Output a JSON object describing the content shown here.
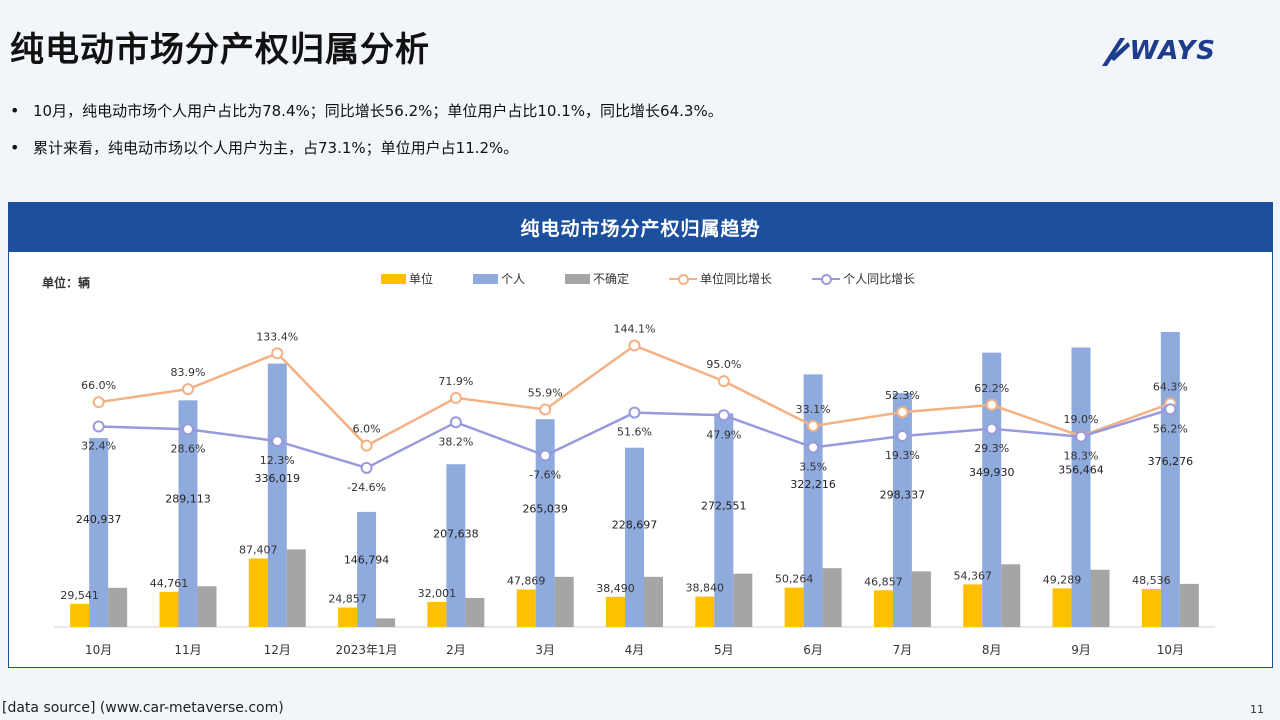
{
  "page": {
    "title": "纯电动市场分产权归属分析",
    "logo_text": "WAYS",
    "bullets": [
      "10月，纯电动市场个人用户占比为78.4%；同比增长56.2%；单位用户占比10.1%，同比增长64.3%。",
      "累计来看，纯电动市场以个人用户为主，占73.1%；单位用户占11.2%。"
    ],
    "bullet_symbol": "•",
    "footer_source": "[data source] (www.car-metaverse.com)",
    "page_number": "11"
  },
  "colors": {
    "brand_blue": "#1d4f9f",
    "unit_bar": "#ffc000",
    "personal_bar": "#8faadc",
    "uncertain_bar": "#a5a5a5",
    "unit_growth_line": "#f4b183",
    "personal_growth_line": "#9999dd"
  },
  "chart_data": {
    "type": "bar",
    "title": "纯电动市场分产权归属趋势",
    "unit_label": "单位：辆",
    "categories": [
      "10月",
      "11月",
      "12月",
      "2023年1月",
      "2月",
      "3月",
      "4月",
      "5月",
      "6月",
      "7月",
      "8月",
      "9月",
      "10月"
    ],
    "series": [
      {
        "name": "单位",
        "type": "bar",
        "values": [
          29541,
          44761,
          87407,
          24857,
          32001,
          47869,
          38490,
          38840,
          50264,
          46857,
          54367,
          49289,
          48536
        ]
      },
      {
        "name": "个人",
        "type": "bar",
        "values": [
          240937,
          289113,
          336019,
          146794,
          207638,
          265039,
          228697,
          272551,
          322216,
          298337,
          349930,
          356464,
          376276
        ]
      },
      {
        "name": "不确定",
        "type": "bar",
        "values": [
          50000,
          52000,
          99000,
          11000,
          37000,
          64000,
          64000,
          68000,
          75000,
          71000,
          80000,
          73000,
          55000
        ]
      },
      {
        "name": "单位同比增长",
        "type": "line",
        "values": [
          66.0,
          83.9,
          133.4,
          6.0,
          71.9,
          55.9,
          144.1,
          95.0,
          33.1,
          52.3,
          62.2,
          19.0,
          64.3
        ]
      },
      {
        "name": "个人同比增长",
        "type": "line",
        "values": [
          32.4,
          28.6,
          12.3,
          -24.6,
          38.2,
          -7.6,
          51.6,
          47.9,
          3.5,
          19.3,
          29.3,
          18.3,
          56.2
        ]
      }
    ],
    "ylim_bars": [
      0,
      376276
    ],
    "ylim_lines": [
      -40,
      160
    ],
    "legend_position": "top",
    "grid": false
  }
}
